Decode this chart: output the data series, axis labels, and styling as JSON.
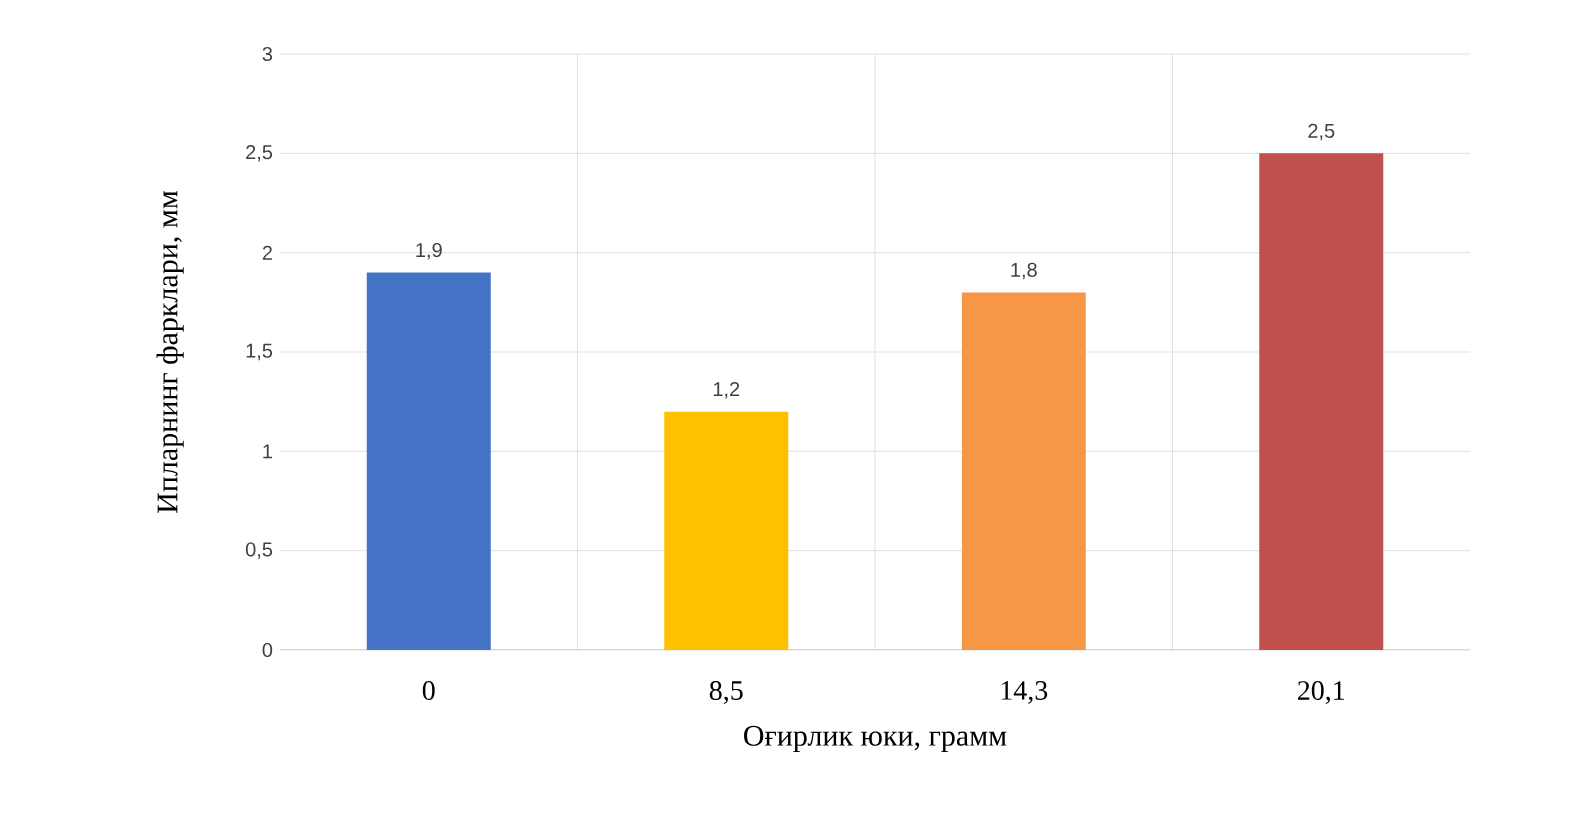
{
  "chart_data": {
    "type": "bar",
    "xlabel": "Оғирлик юки, грамм",
    "ylabel": "Ипларнинг фарклари,  мм",
    "categories": [
      "0",
      "8,5",
      "14,3",
      "20,1"
    ],
    "values": [
      1.9,
      1.2,
      1.8,
      2.5
    ],
    "colors": [
      "#4472c4",
      "#ffc000",
      "#f79646",
      "#c0504d"
    ],
    "ylim": [
      0,
      3
    ],
    "yticks": [
      0,
      {
        "value": 0.5,
        "label": "0,5"
      },
      1,
      {
        "value": 1.5,
        "label": "1,5"
      },
      2,
      {
        "value": 2.5,
        "label": "2,5"
      },
      3
    ],
    "value_labels": [
      "1,9",
      "1,2",
      "1,8",
      "2,5"
    ],
    "grid": true
  }
}
